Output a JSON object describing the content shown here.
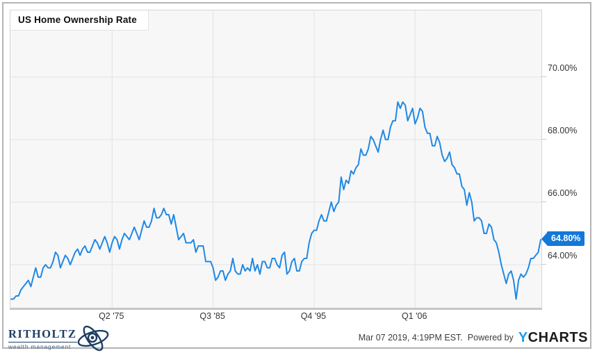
{
  "title": "US Home Ownership Rate",
  "chart_data": {
    "type": "line",
    "title": "US Home Ownership Rate",
    "frequency": "quarterly",
    "x_start": "1965 Q1",
    "x_end": "2018 Q4",
    "line_color": "#1f88e5",
    "grid": true,
    "legend": "none",
    "ylim": [
      62.6,
      72.13
    ],
    "y_ticks": [
      70,
      68,
      66,
      64
    ],
    "y_tick_labels": [
      "70.00%",
      "68.00%",
      "66.00%",
      "64.00%"
    ],
    "x_tick_labels": [
      "Q2 '75",
      "Q3 '85",
      "Q4 '95",
      "Q1 '06"
    ],
    "x_tick_indices": [
      41,
      82,
      123,
      164
    ],
    "last_value": 64.8,
    "last_value_label": "64.80%",
    "values": [
      62.9,
      62.9,
      63.0,
      63.0,
      63.2,
      63.3,
      63.4,
      63.5,
      63.3,
      63.6,
      63.9,
      63.6,
      63.6,
      63.9,
      64.0,
      63.9,
      63.9,
      64.1,
      64.4,
      64.3,
      63.9,
      64.1,
      64.3,
      64.2,
      64.0,
      64.2,
      64.4,
      64.5,
      64.3,
      64.5,
      64.6,
      64.4,
      64.4,
      64.6,
      64.8,
      64.7,
      64.5,
      64.7,
      64.9,
      64.7,
      64.4,
      64.7,
      64.9,
      64.8,
      64.5,
      64.8,
      65.0,
      64.9,
      64.8,
      65.0,
      65.2,
      65.0,
      64.8,
      65.1,
      65.4,
      65.2,
      65.2,
      65.4,
      65.8,
      65.5,
      65.5,
      65.6,
      65.8,
      65.6,
      65.6,
      65.3,
      65.6,
      65.2,
      64.8,
      64.9,
      65.0,
      64.7,
      64.7,
      64.7,
      64.8,
      64.4,
      64.6,
      64.6,
      64.6,
      64.1,
      64.1,
      64.1,
      63.9,
      63.5,
      63.6,
      63.8,
      63.8,
      63.5,
      63.7,
      63.8,
      64.2,
      63.8,
      63.7,
      63.7,
      64.0,
      63.8,
      63.9,
      63.8,
      64.2,
      63.8,
      64.0,
      63.7,
      64.1,
      64.1,
      63.9,
      63.9,
      64.2,
      64.2,
      64.0,
      63.9,
      64.3,
      64.4,
      63.7,
      63.8,
      64.1,
      64.2,
      63.8,
      63.8,
      64.1,
      64.2,
      64.2,
      64.7,
      65.0,
      65.1,
      65.1,
      65.4,
      65.6,
      65.4,
      65.4,
      65.7,
      66.0,
      65.7,
      65.9,
      66.0,
      66.8,
      66.4,
      66.7,
      66.6,
      67.0,
      66.9,
      67.1,
      67.2,
      67.7,
      67.5,
      67.5,
      67.7,
      68.1,
      68.0,
      67.8,
      67.6,
      68.0,
      68.3,
      68.0,
      68.0,
      68.4,
      68.6,
      68.6,
      69.2,
      69.0,
      69.2,
      69.1,
      68.6,
      68.8,
      69.0,
      68.5,
      68.7,
      69.0,
      68.9,
      68.4,
      68.2,
      68.2,
      67.8,
      67.8,
      68.1,
      67.9,
      67.5,
      67.3,
      67.4,
      67.6,
      67.2,
      67.1,
      66.9,
      66.9,
      66.5,
      66.4,
      65.9,
      66.3,
      66.0,
      65.4,
      65.5,
      65.5,
      65.4,
      65.0,
      65.0,
      65.3,
      65.2,
      64.8,
      64.7,
      64.4,
      64.0,
      63.7,
      63.4,
      63.7,
      63.8,
      63.5,
      62.9,
      63.5,
      63.7,
      63.6,
      63.7,
      63.9,
      64.2,
      64.2,
      64.3,
      64.4,
      64.8
    ]
  },
  "footer": {
    "timestamp": "Mar 07 2019, 4:19PM EST.",
    "powered_by": "Powered by",
    "ycharts_y": "Y",
    "ycharts_rest": "CHARTS"
  },
  "logo": {
    "name": "RITHOLTZ",
    "subtitle": "wealth management"
  },
  "colors": {
    "line": "#1f88e5",
    "badge": "#1478d8",
    "ycharts_blue": "#1d9bf0",
    "ritholtz_navy": "#1d3e63",
    "plot_bg": "#f7f7f7",
    "gridline": "#e3e3e3"
  }
}
